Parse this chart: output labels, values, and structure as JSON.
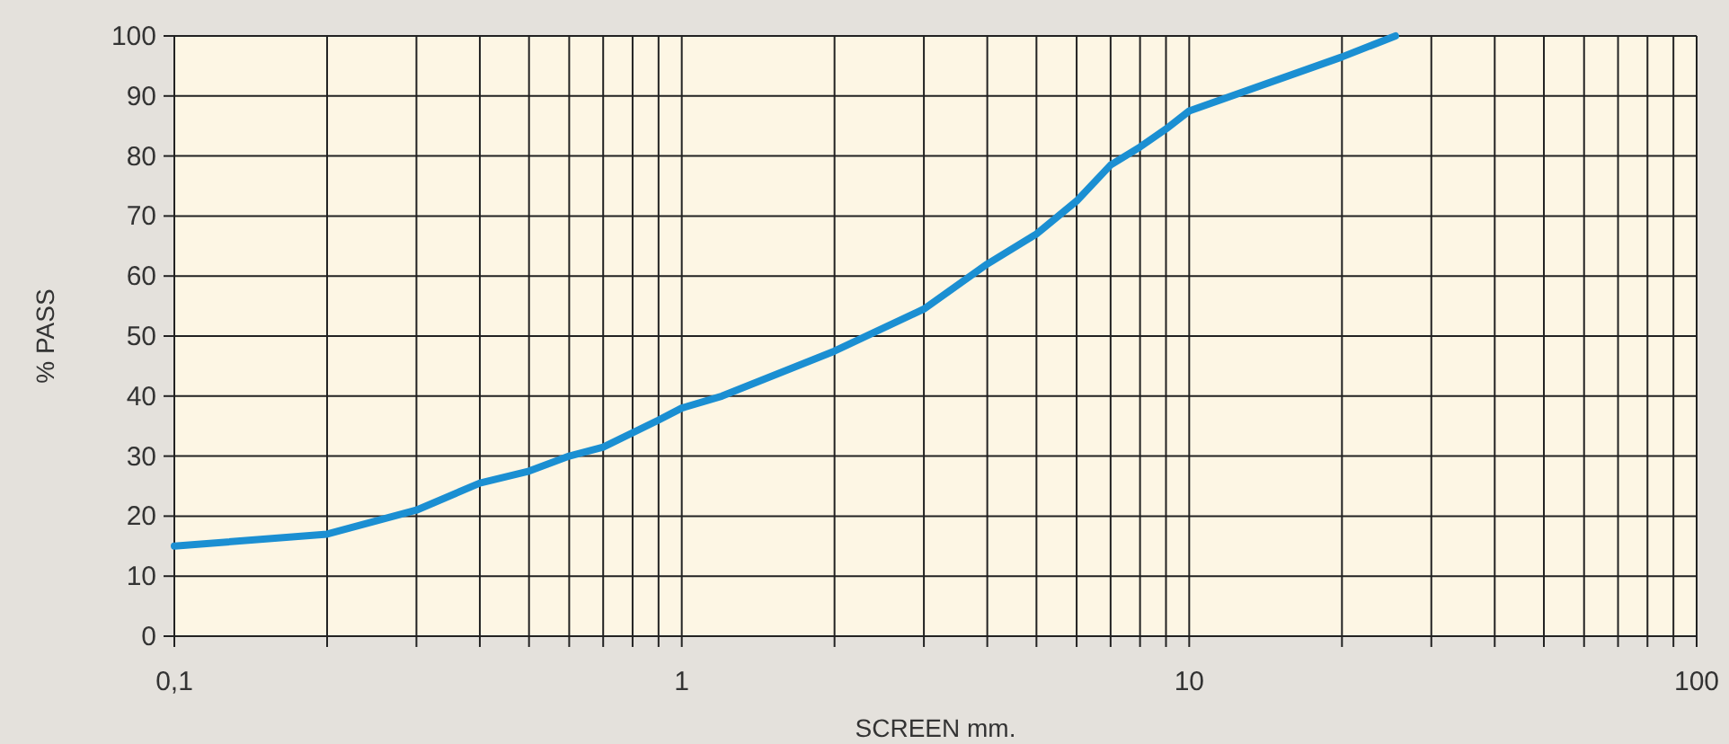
{
  "chart_data": {
    "type": "line",
    "xlabel": "SCREEN mm.",
    "ylabel": "% PASS",
    "log": "x",
    "grid": true,
    "marker": "none",
    "line_style": "solid",
    "xlim": [
      0.1,
      100
    ],
    "ylim": [
      0,
      100
    ],
    "xticks": [
      {
        "value": 0.1,
        "label": "0,1"
      },
      {
        "value": 0.2,
        "label": null
      },
      {
        "value": 0.3,
        "label": null
      },
      {
        "value": 0.4,
        "label": null
      },
      {
        "value": 0.5,
        "label": null
      },
      {
        "value": 0.6,
        "label": null
      },
      {
        "value": 0.7,
        "label": null
      },
      {
        "value": 0.8,
        "label": null
      },
      {
        "value": 0.9,
        "label": null
      },
      1,
      {
        "value": 2,
        "label": null
      },
      {
        "value": 3,
        "label": null
      },
      {
        "value": 4,
        "label": null
      },
      {
        "value": 5,
        "label": null
      },
      {
        "value": 6,
        "label": null
      },
      {
        "value": 7,
        "label": null
      },
      {
        "value": 8,
        "label": null
      },
      {
        "value": 9,
        "label": null
      },
      10,
      {
        "value": 20,
        "label": null
      },
      {
        "value": 30,
        "label": null
      },
      {
        "value": 40,
        "label": null
      },
      {
        "value": 50,
        "label": null
      },
      {
        "value": 60,
        "label": null
      },
      {
        "value": 70,
        "label": null
      },
      {
        "value": 80,
        "label": null
      },
      {
        "value": 90,
        "label": null
      },
      100
    ],
    "yticks": [
      0,
      10,
      20,
      30,
      40,
      50,
      60,
      70,
      80,
      90,
      100
    ],
    "x": [
      0.1,
      0.2,
      0.3,
      0.4,
      0.5,
      0.6,
      0.7,
      0.9,
      1,
      1.2,
      2,
      3,
      4,
      5,
      6,
      7,
      8,
      9,
      10,
      20,
      25.5
    ],
    "series": [
      {
        "color": "#1b8fd2",
        "values": [
          15,
          17,
          21,
          25.5,
          27.5,
          30,
          31.5,
          36,
          38,
          40,
          47.5,
          54.5,
          62,
          67,
          72.5,
          78.5,
          81.5,
          84.5,
          87.5,
          96.5,
          100
        ]
      }
    ]
  }
}
